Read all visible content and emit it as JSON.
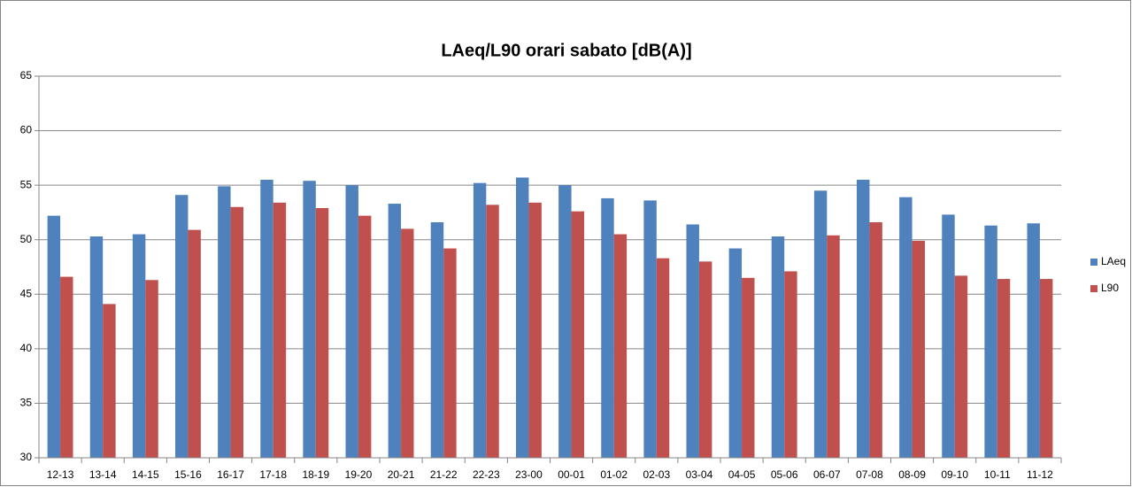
{
  "chart_data": {
    "type": "bar",
    "title": "LAeq/L90 orari sabato [dB(A)]",
    "categories": [
      "12-13",
      "13-14",
      "14-15",
      "15-16",
      "16-17",
      "17-18",
      "18-19",
      "19-20",
      "20-21",
      "21-22",
      "22-23",
      "23-00",
      "00-01",
      "01-02",
      "02-03",
      "03-04",
      "04-05",
      "05-06",
      "06-07",
      "07-08",
      "08-09",
      "09-10",
      "10-11",
      "11-12"
    ],
    "series": [
      {
        "name": "LAeq",
        "color": "#4f81bd",
        "values": [
          52.2,
          50.3,
          50.5,
          54.1,
          54.9,
          55.5,
          55.4,
          55.0,
          53.3,
          51.6,
          55.2,
          55.7,
          55.0,
          53.8,
          53.6,
          51.4,
          49.2,
          50.3,
          54.5,
          55.5,
          53.9,
          52.3,
          51.3,
          51.5
        ]
      },
      {
        "name": "L90",
        "color": "#c0504d",
        "values": [
          46.6,
          44.1,
          46.3,
          50.9,
          53.0,
          53.4,
          52.9,
          52.2,
          51.0,
          49.2,
          53.2,
          53.4,
          52.6,
          50.5,
          48.3,
          48.0,
          46.5,
          47.1,
          50.4,
          51.6,
          49.9,
          46.7,
          46.4,
          46.4
        ]
      }
    ],
    "ylim": [
      30,
      65
    ],
    "yticks": [
      30,
      35,
      40,
      45,
      50,
      55,
      60,
      65
    ],
    "grid": true,
    "legend": "right"
  }
}
